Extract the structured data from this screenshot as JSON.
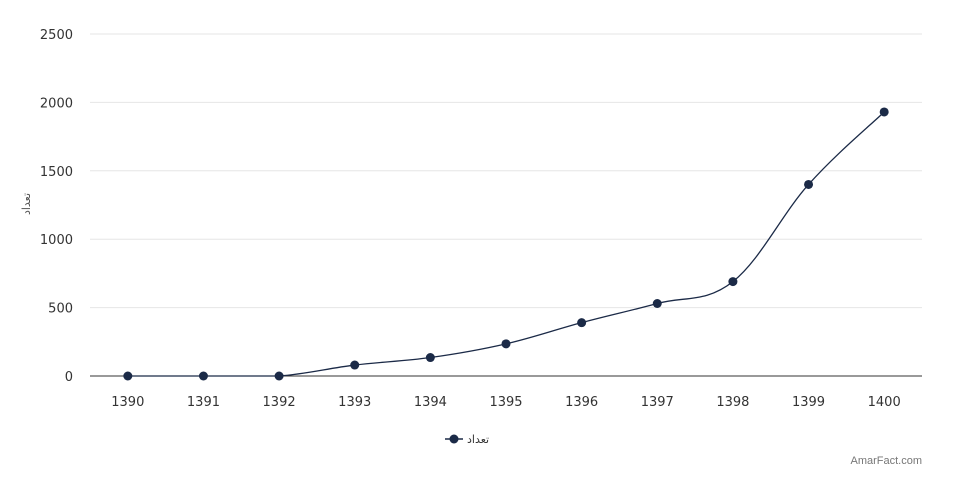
{
  "chart_data": {
    "type": "line",
    "categories": [
      "1390",
      "1391",
      "1392",
      "1393",
      "1394",
      "1395",
      "1396",
      "1397",
      "1398",
      "1399",
      "1400"
    ],
    "series": [
      {
        "name": "تعداد",
        "values": [
          0,
          0,
          0,
          80,
          135,
          235,
          390,
          530,
          690,
          1400,
          1930
        ]
      }
    ],
    "ylabel": "تعداد",
    "ylim": [
      0,
      2500
    ],
    "yticks": [
      0,
      500,
      1000,
      1500,
      2000,
      2500
    ],
    "grid": true,
    "legend": "bottom-center",
    "colors": {
      "series": "#1b2a47",
      "grid": "#e6e6e6",
      "axis": "#333333"
    }
  },
  "credit": "AmarFact.com"
}
